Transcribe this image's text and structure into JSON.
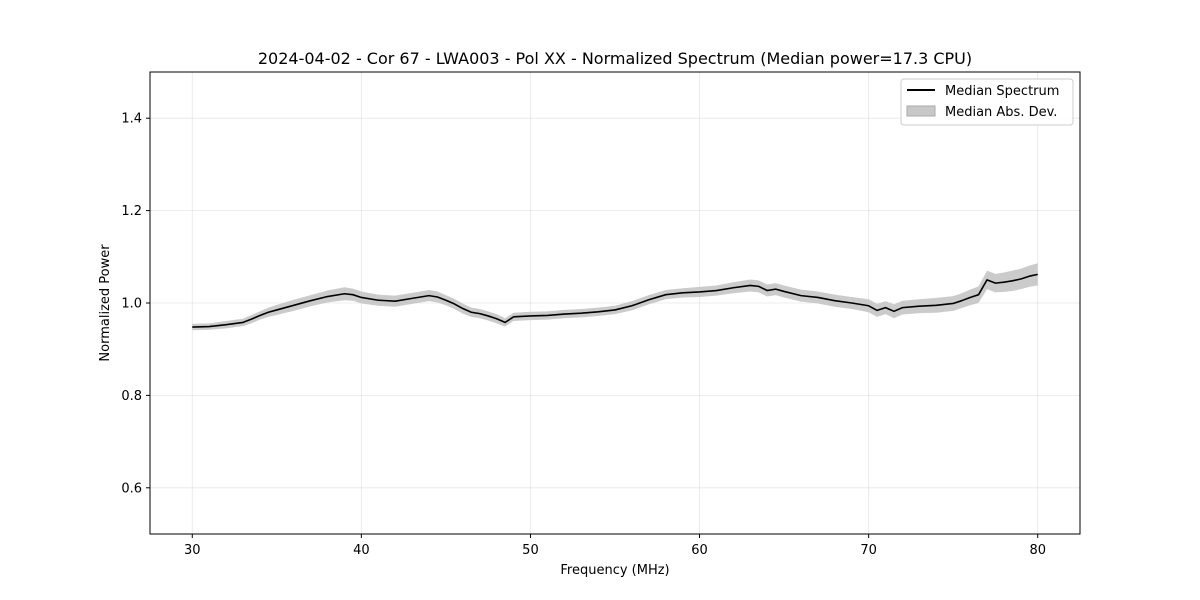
{
  "chart_data": {
    "type": "line",
    "title": "2024-04-02 - Cor 67 - LWA003 - Pol XX - Normalized Spectrum (Median power=17.3 CPU)",
    "xlabel": "Frequency (MHz)",
    "ylabel": "Normalized Power",
    "xlim": [
      27.5,
      82.5
    ],
    "ylim": [
      0.5,
      1.5
    ],
    "xticks": [
      30,
      40,
      50,
      60,
      70,
      80
    ],
    "yticks": [
      0.6,
      0.8,
      1.0,
      1.2,
      1.4
    ],
    "grid": true,
    "legend": {
      "position": "top-right",
      "entries": [
        {
          "label": "Median Spectrum",
          "kind": "line",
          "color": "#000000"
        },
        {
          "label": "Median Abs. Dev.",
          "kind": "patch",
          "color": "#c8c8c8"
        }
      ]
    },
    "series": [
      {
        "name": "Median Spectrum",
        "color": "#000000",
        "band_color": "#c8c8c8",
        "x": [
          30,
          31,
          32,
          33,
          33.5,
          34,
          34.5,
          35,
          36,
          37,
          38,
          39,
          39.5,
          40,
          41,
          42,
          43,
          44,
          44.5,
          45,
          45.5,
          46,
          46.5,
          47,
          47.5,
          48,
          48.5,
          49,
          50,
          51,
          52,
          53,
          54,
          55,
          56,
          57,
          58,
          59,
          60,
          61,
          62,
          63,
          63.5,
          64,
          64.5,
          65,
          66,
          67,
          68,
          69,
          70,
          70.5,
          71,
          71.5,
          72,
          73,
          74,
          75,
          75.5,
          76,
          76.5,
          77,
          77.5,
          78,
          78.5,
          79,
          79.5,
          80
        ],
        "y": [
          0.948,
          0.949,
          0.953,
          0.958,
          0.965,
          0.973,
          0.98,
          0.985,
          0.995,
          1.005,
          1.014,
          1.02,
          1.018,
          1.012,
          1.006,
          1.004,
          1.01,
          1.016,
          1.013,
          1.006,
          0.998,
          0.988,
          0.98,
          0.977,
          0.972,
          0.966,
          0.958,
          0.97,
          0.972,
          0.973,
          0.976,
          0.978,
          0.981,
          0.985,
          0.994,
          1.007,
          1.018,
          1.022,
          1.024,
          1.027,
          1.033,
          1.038,
          1.036,
          1.027,
          1.03,
          1.025,
          1.016,
          1.012,
          1.005,
          1.0,
          0.994,
          0.984,
          0.99,
          0.982,
          0.99,
          0.993,
          0.995,
          0.999,
          1.005,
          1.012,
          1.018,
          1.05,
          1.043,
          1.045,
          1.048,
          1.052,
          1.058,
          1.062
        ],
        "mad": [
          0.007,
          0.007,
          0.008,
          0.008,
          0.009,
          0.009,
          0.01,
          0.011,
          0.012,
          0.012,
          0.013,
          0.014,
          0.013,
          0.013,
          0.012,
          0.012,
          0.012,
          0.012,
          0.012,
          0.011,
          0.011,
          0.011,
          0.01,
          0.01,
          0.01,
          0.01,
          0.009,
          0.009,
          0.009,
          0.009,
          0.009,
          0.009,
          0.009,
          0.009,
          0.01,
          0.01,
          0.01,
          0.01,
          0.011,
          0.011,
          0.012,
          0.013,
          0.013,
          0.013,
          0.013,
          0.013,
          0.013,
          0.013,
          0.013,
          0.013,
          0.014,
          0.014,
          0.014,
          0.015,
          0.015,
          0.015,
          0.016,
          0.016,
          0.016,
          0.017,
          0.018,
          0.02,
          0.02,
          0.021,
          0.022,
          0.022,
          0.023,
          0.024
        ]
      }
    ]
  }
}
